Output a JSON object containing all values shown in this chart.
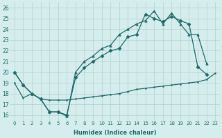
{
  "xlabel": "Humidex (Indice chaleur)",
  "bg_color": "#d5eeed",
  "grid_color": "#b0cfce",
  "line_color": "#1a6b6a",
  "xlim": [
    -0.5,
    23.5
  ],
  "ylim": [
    15.5,
    26.5
  ],
  "xticks": [
    0,
    1,
    2,
    3,
    4,
    5,
    6,
    7,
    8,
    9,
    10,
    11,
    12,
    13,
    14,
    15,
    16,
    17,
    18,
    19,
    20,
    21,
    22,
    23
  ],
  "yticks": [
    16,
    17,
    18,
    19,
    20,
    21,
    22,
    23,
    24,
    25,
    26
  ],
  "series1_x": [
    0,
    1,
    2,
    3,
    4,
    5,
    6,
    7,
    8,
    9,
    10,
    11,
    12,
    13,
    14,
    15,
    16,
    17,
    18,
    19,
    20,
    21,
    22
  ],
  "series1_y": [
    20.0,
    18.8,
    18.0,
    17.5,
    16.3,
    16.3,
    16.0,
    19.5,
    20.4,
    21.0,
    21.5,
    22.0,
    22.2,
    23.3,
    23.5,
    25.4,
    25.0,
    24.7,
    25.2,
    24.8,
    24.5,
    20.5,
    19.8
  ],
  "series2_x": [
    0,
    1,
    2,
    3,
    4,
    5,
    6,
    7,
    8,
    9,
    10,
    11,
    12,
    13,
    14,
    15,
    16,
    17,
    18,
    19,
    20,
    21,
    22
  ],
  "series2_y": [
    20.0,
    18.8,
    18.0,
    17.5,
    16.3,
    16.3,
    15.9,
    20.0,
    21.0,
    21.5,
    22.2,
    22.5,
    23.5,
    24.0,
    24.5,
    24.8,
    25.7,
    24.5,
    25.5,
    24.5,
    23.5,
    23.5,
    20.8
  ],
  "series3_x": [
    0,
    1,
    2,
    3,
    4,
    5,
    6,
    7,
    8,
    9,
    10,
    11,
    12,
    13,
    14,
    15,
    16,
    17,
    18,
    19,
    20,
    21,
    22,
    23
  ],
  "series3_y": [
    19.0,
    17.6,
    18.0,
    17.5,
    17.4,
    17.4,
    17.4,
    17.5,
    17.6,
    17.7,
    17.8,
    17.9,
    18.0,
    18.2,
    18.4,
    18.5,
    18.6,
    18.7,
    18.8,
    18.9,
    19.0,
    19.1,
    19.3,
    19.9
  ]
}
